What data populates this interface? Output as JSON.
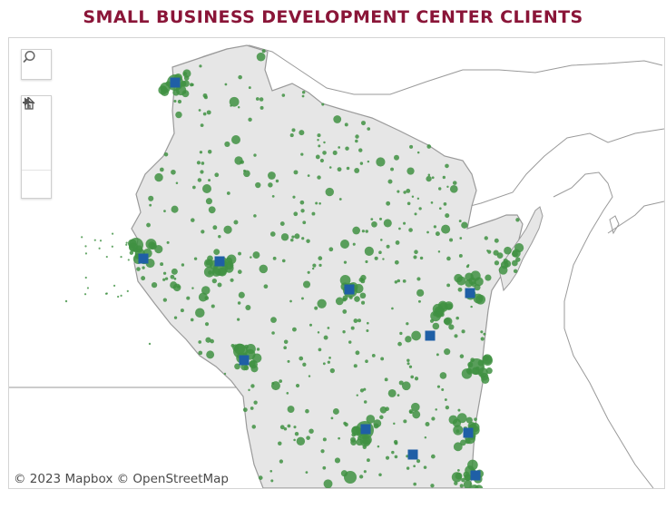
{
  "title": "SMALL BUSINESS DEVELOPMENT CENTER CLIENTS",
  "attribution": "© 2023 Mapbox  © OpenStreetMap",
  "controls": {
    "search": "search-icon",
    "zoom_in": "plus-icon",
    "zoom_out": "minus-icon",
    "home": "home-icon",
    "play": "play-icon"
  },
  "colors": {
    "title": "#8a1538",
    "state_fill": "#e6e6e6",
    "state_border": "#9a9a9a",
    "client_dots": "#3f9142",
    "center_markers": "#1f5fa6"
  }
}
